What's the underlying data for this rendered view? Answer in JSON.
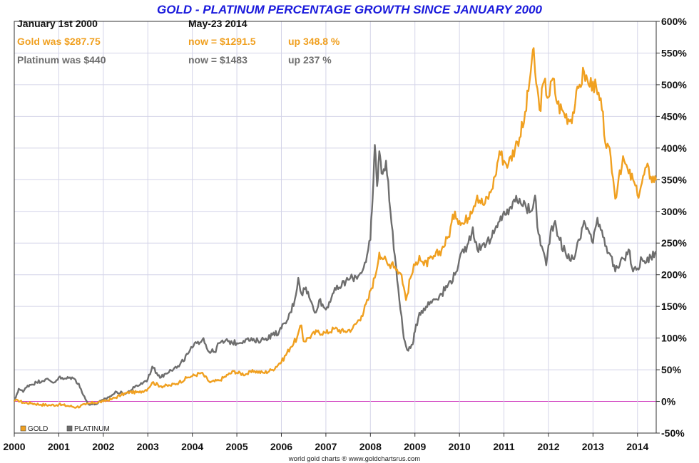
{
  "chart_data": {
    "type": "line",
    "title": "GOLD - PLATINUM PERCENTAGE GROWTH SINCE JANUARY 2000",
    "info": {
      "start_label": "January 1st 2000",
      "end_label": "May-23  2014",
      "gold_was": "Gold was $287.75",
      "gold_now": "now = $1291.5",
      "gold_up": "up 348.8 %",
      "platinum_was": "Platinum was $440",
      "platinum_now": "now = $1483",
      "platinum_up": "up 237 %"
    },
    "x_ticks": [
      "2000",
      "2001",
      "2002",
      "2003",
      "2004",
      "2005",
      "2006",
      "2007",
      "2008",
      "2009",
      "2010",
      "2011",
      "2012",
      "2013",
      "2014"
    ],
    "y_ticks": [
      "600%",
      "550%",
      "500%",
      "450%",
      "400%",
      "350%",
      "300%",
      "250%",
      "200%",
      "150%",
      "100%",
      "50%",
      "0%",
      "-50%"
    ],
    "xlim": [
      2000.0,
      2014.42
    ],
    "ylim": [
      -50,
      600
    ],
    "grid": true,
    "legend_position": "bottom-left",
    "credit": "world gold charts ® www.goldchartsrus.com",
    "colors": {
      "gold": "#f0a020",
      "platinum": "#6e6e6e",
      "zero_line": "#d040c0",
      "grid": "#d4d4e8",
      "title": "#1a1adc"
    },
    "series": [
      {
        "name": "GOLD",
        "color": "#f0a020",
        "points": [
          [
            2000.0,
            0
          ],
          [
            2000.08,
            2
          ],
          [
            2000.2,
            -2
          ],
          [
            2000.4,
            -3
          ],
          [
            2000.6,
            -5
          ],
          [
            2000.8,
            -6
          ],
          [
            2001.0,
            -5
          ],
          [
            2001.2,
            -7
          ],
          [
            2001.4,
            -9
          ],
          [
            2001.6,
            -5
          ],
          [
            2001.7,
            -3
          ],
          [
            2001.8,
            -2
          ],
          [
            2002.0,
            0
          ],
          [
            2002.2,
            4
          ],
          [
            2002.4,
            10
          ],
          [
            2002.6,
            15
          ],
          [
            2002.8,
            14
          ],
          [
            2003.0,
            20
          ],
          [
            2003.1,
            30
          ],
          [
            2003.3,
            24
          ],
          [
            2003.5,
            25
          ],
          [
            2003.7,
            30
          ],
          [
            2003.9,
            38
          ],
          [
            2004.0,
            40
          ],
          [
            2004.2,
            45
          ],
          [
            2004.4,
            30
          ],
          [
            2004.6,
            33
          ],
          [
            2004.8,
            42
          ],
          [
            2004.95,
            48
          ],
          [
            2005.0,
            45
          ],
          [
            2005.2,
            43
          ],
          [
            2005.4,
            48
          ],
          [
            2005.6,
            45
          ],
          [
            2005.8,
            50
          ],
          [
            2005.95,
            60
          ],
          [
            2006.0,
            62
          ],
          [
            2006.2,
            85
          ],
          [
            2006.35,
            100
          ],
          [
            2006.45,
            120
          ],
          [
            2006.5,
            95
          ],
          [
            2006.6,
            100
          ],
          [
            2006.8,
            110
          ],
          [
            2007.0,
            108
          ],
          [
            2007.2,
            115
          ],
          [
            2007.4,
            110
          ],
          [
            2007.6,
            115
          ],
          [
            2007.8,
            135
          ],
          [
            2007.95,
            160
          ],
          [
            2008.0,
            175
          ],
          [
            2008.1,
            195
          ],
          [
            2008.2,
            235
          ],
          [
            2008.3,
            225
          ],
          [
            2008.4,
            215
          ],
          [
            2008.5,
            220
          ],
          [
            2008.6,
            208
          ],
          [
            2008.7,
            200
          ],
          [
            2008.8,
            160
          ],
          [
            2008.9,
            195
          ],
          [
            2009.0,
            215
          ],
          [
            2009.1,
            230
          ],
          [
            2009.2,
            215
          ],
          [
            2009.4,
            225
          ],
          [
            2009.6,
            240
          ],
          [
            2009.75,
            260
          ],
          [
            2009.9,
            300
          ],
          [
            2010.0,
            285
          ],
          [
            2010.1,
            280
          ],
          [
            2010.25,
            300
          ],
          [
            2010.4,
            325
          ],
          [
            2010.55,
            310
          ],
          [
            2010.7,
            330
          ],
          [
            2010.8,
            355
          ],
          [
            2010.9,
            395
          ],
          [
            2011.0,
            380
          ],
          [
            2011.1,
            375
          ],
          [
            2011.3,
            410
          ],
          [
            2011.45,
            440
          ],
          [
            2011.55,
            490
          ],
          [
            2011.65,
            555
          ],
          [
            2011.7,
            520
          ],
          [
            2011.8,
            460
          ],
          [
            2011.9,
            505
          ],
          [
            2012.0,
            480
          ],
          [
            2012.1,
            510
          ],
          [
            2012.2,
            470
          ],
          [
            2012.35,
            455
          ],
          [
            2012.5,
            445
          ],
          [
            2012.6,
            470
          ],
          [
            2012.7,
            500
          ],
          [
            2012.8,
            520
          ],
          [
            2012.9,
            500
          ],
          [
            2013.0,
            505
          ],
          [
            2013.1,
            485
          ],
          [
            2013.2,
            460
          ],
          [
            2013.3,
            400
          ],
          [
            2013.4,
            385
          ],
          [
            2013.5,
            320
          ],
          [
            2013.6,
            365
          ],
          [
            2013.7,
            380
          ],
          [
            2013.8,
            360
          ],
          [
            2013.9,
            350
          ],
          [
            2014.0,
            325
          ],
          [
            2014.1,
            345
          ],
          [
            2014.2,
            370
          ],
          [
            2014.3,
            355
          ],
          [
            2014.42,
            349
          ]
        ]
      },
      {
        "name": "PLATINUM",
        "color": "#6e6e6e",
        "points": [
          [
            2000.0,
            0
          ],
          [
            2000.05,
            10
          ],
          [
            2000.1,
            20
          ],
          [
            2000.2,
            15
          ],
          [
            2000.3,
            25
          ],
          [
            2000.5,
            30
          ],
          [
            2000.7,
            35
          ],
          [
            2000.9,
            30
          ],
          [
            2001.0,
            38
          ],
          [
            2001.1,
            35
          ],
          [
            2001.3,
            38
          ],
          [
            2001.45,
            28
          ],
          [
            2001.55,
            10
          ],
          [
            2001.65,
            -3
          ],
          [
            2001.8,
            -5
          ],
          [
            2002.0,
            2
          ],
          [
            2002.15,
            8
          ],
          [
            2002.3,
            15
          ],
          [
            2002.5,
            12
          ],
          [
            2002.7,
            22
          ],
          [
            2002.9,
            30
          ],
          [
            2003.0,
            35
          ],
          [
            2003.1,
            55
          ],
          [
            2003.2,
            45
          ],
          [
            2003.3,
            38
          ],
          [
            2003.5,
            50
          ],
          [
            2003.7,
            55
          ],
          [
            2003.9,
            75
          ],
          [
            2004.0,
            85
          ],
          [
            2004.1,
            92
          ],
          [
            2004.25,
            100
          ],
          [
            2004.35,
            80
          ],
          [
            2004.5,
            78
          ],
          [
            2004.6,
            92
          ],
          [
            2004.8,
            95
          ],
          [
            2005.0,
            92
          ],
          [
            2005.2,
            98
          ],
          [
            2005.4,
            95
          ],
          [
            2005.6,
            98
          ],
          [
            2005.8,
            105
          ],
          [
            2005.95,
            110
          ],
          [
            2006.0,
            115
          ],
          [
            2006.15,
            130
          ],
          [
            2006.3,
            160
          ],
          [
            2006.38,
            195
          ],
          [
            2006.45,
            170
          ],
          [
            2006.55,
            180
          ],
          [
            2006.65,
            160
          ],
          [
            2006.75,
            140
          ],
          [
            2006.85,
            160
          ],
          [
            2007.0,
            145
          ],
          [
            2007.15,
            170
          ],
          [
            2007.3,
            180
          ],
          [
            2007.45,
            190
          ],
          [
            2007.6,
            195
          ],
          [
            2007.75,
            200
          ],
          [
            2007.9,
            220
          ],
          [
            2008.0,
            255
          ],
          [
            2008.05,
            320
          ],
          [
            2008.1,
            405
          ],
          [
            2008.15,
            340
          ],
          [
            2008.2,
            395
          ],
          [
            2008.25,
            360
          ],
          [
            2008.35,
            380
          ],
          [
            2008.45,
            300
          ],
          [
            2008.55,
            230
          ],
          [
            2008.65,
            160
          ],
          [
            2008.75,
            100
          ],
          [
            2008.85,
            80
          ],
          [
            2008.95,
            90
          ],
          [
            2009.0,
            110
          ],
          [
            2009.1,
            140
          ],
          [
            2009.25,
            150
          ],
          [
            2009.4,
            160
          ],
          [
            2009.6,
            170
          ],
          [
            2009.75,
            185
          ],
          [
            2009.9,
            200
          ],
          [
            2010.0,
            225
          ],
          [
            2010.1,
            235
          ],
          [
            2010.2,
            250
          ],
          [
            2010.3,
            275
          ],
          [
            2010.4,
            240
          ],
          [
            2010.55,
            250
          ],
          [
            2010.7,
            255
          ],
          [
            2010.85,
            275
          ],
          [
            2011.0,
            300
          ],
          [
            2011.1,
            295
          ],
          [
            2011.2,
            315
          ],
          [
            2011.35,
            320
          ],
          [
            2011.5,
            305
          ],
          [
            2011.6,
            300
          ],
          [
            2011.7,
            325
          ],
          [
            2011.75,
            275
          ],
          [
            2011.85,
            245
          ],
          [
            2011.95,
            215
          ],
          [
            2012.05,
            270
          ],
          [
            2012.15,
            285
          ],
          [
            2012.25,
            255
          ],
          [
            2012.4,
            230
          ],
          [
            2012.55,
            225
          ],
          [
            2012.7,
            255
          ],
          [
            2012.8,
            285
          ],
          [
            2012.9,
            270
          ],
          [
            2013.0,
            250
          ],
          [
            2013.1,
            290
          ],
          [
            2013.2,
            270
          ],
          [
            2013.3,
            245
          ],
          [
            2013.4,
            230
          ],
          [
            2013.5,
            205
          ],
          [
            2013.6,
            215
          ],
          [
            2013.7,
            225
          ],
          [
            2013.8,
            240
          ],
          [
            2013.9,
            205
          ],
          [
            2014.0,
            210
          ],
          [
            2014.1,
            225
          ],
          [
            2014.2,
            220
          ],
          [
            2014.3,
            228
          ],
          [
            2014.42,
            237
          ]
        ]
      }
    ]
  }
}
